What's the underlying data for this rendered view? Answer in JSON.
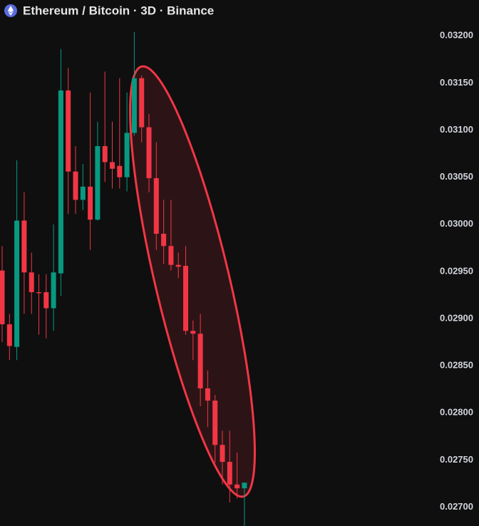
{
  "chart_data": {
    "type": "candlestick",
    "title": "Ethereum / Bitcoin · 3D · Binance",
    "up_color": "#089981",
    "down_color": "#f23645",
    "open": [
      0.02951,
      0.02894,
      0.0287,
      0.03004,
      0.02949,
      0.02928,
      0.02928,
      0.02911,
      0.02948,
      0.03142,
      0.03056,
      0.03026,
      0.0304,
      0.03005,
      0.03083,
      0.03066,
      0.03062,
      0.0305,
      0.03097,
      0.03155,
      0.03103,
      0.03049,
      0.0299,
      0.02977,
      0.02957,
      0.02956,
      0.02887,
      0.02884,
      0.02826,
      0.02813,
      0.02766,
      0.02748,
      0.02724,
      0.0272
    ],
    "high": [
      0.02977,
      0.02905,
      0.03068,
      0.03034,
      0.0297,
      0.02947,
      0.02947,
      0.03,
      0.03186,
      0.03166,
      0.03083,
      0.03064,
      0.0314,
      0.03109,
      0.03162,
      0.03109,
      0.03155,
      0.0314,
      0.03204,
      0.03158,
      0.03117,
      0.03087,
      0.03026,
      0.03026,
      0.0297,
      0.02977,
      0.02898,
      0.02905,
      0.02845,
      0.02819,
      0.02781,
      0.02781,
      0.02758,
      0.02726
    ],
    "low": [
      0.02875,
      0.02856,
      0.02856,
      0.02905,
      0.02905,
      0.02883,
      0.02879,
      0.02887,
      0.02924,
      0.03011,
      0.03011,
      0.03015,
      0.02973,
      0.03004,
      0.03045,
      0.03038,
      0.03038,
      0.03035,
      0.03094,
      0.03087,
      0.03034,
      0.02973,
      0.02958,
      0.02951,
      0.02943,
      0.02883,
      0.02856,
      0.02807,
      0.02785,
      0.02747,
      0.02724,
      0.02705,
      0.02709,
      0.0268
    ],
    "close": [
      0.02894,
      0.02871,
      0.03004,
      0.02949,
      0.02928,
      0.02927,
      0.02911,
      0.02949,
      0.03142,
      0.03056,
      0.03026,
      0.0304,
      0.03005,
      0.03083,
      0.03066,
      0.03059,
      0.0305,
      0.03097,
      0.03155,
      0.03103,
      0.03049,
      0.0299,
      0.02977,
      0.02957,
      0.02955,
      0.02887,
      0.02884,
      0.02826,
      0.02813,
      0.02766,
      0.02748,
      0.02724,
      0.0272,
      0.02726
    ],
    "ylim": [
      0.0268,
      0.03238
    ],
    "yticks": [
      {
        "value": 0.032,
        "label": "0.03200"
      },
      {
        "value": 0.0315,
        "label": "0.03150"
      },
      {
        "value": 0.031,
        "label": "0.03100"
      },
      {
        "value": 0.0305,
        "label": "0.03050"
      },
      {
        "value": 0.03,
        "label": "0.03000"
      },
      {
        "value": 0.0295,
        "label": "0.02950"
      },
      {
        "value": 0.029,
        "label": "0.02900"
      },
      {
        "value": 0.0285,
        "label": "0.02850"
      },
      {
        "value": 0.028,
        "label": "0.02800"
      },
      {
        "value": 0.0275,
        "label": "0.02750"
      },
      {
        "value": 0.027,
        "label": "0.02700"
      }
    ]
  }
}
